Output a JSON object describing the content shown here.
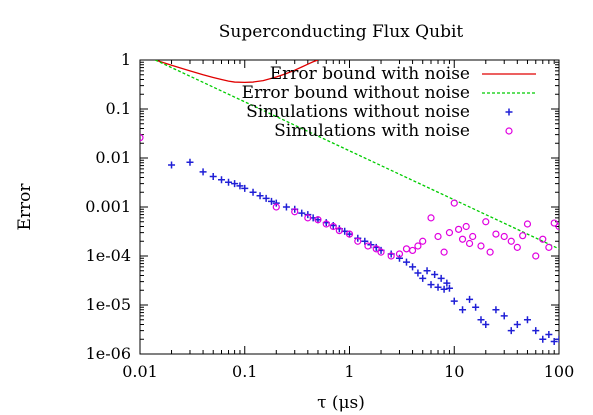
{
  "chart_data": {
    "type": "scatter",
    "title": "Superconducting Flux Qubit",
    "xlabel": "τ (μs)",
    "ylabel": "Error",
    "xscale": "log",
    "yscale": "log",
    "xlim": [
      0.01,
      100
    ],
    "ylim": [
      1e-06,
      1
    ],
    "grid": false,
    "legend_position": "top-right",
    "x_ticks": [
      {
        "value": 0.01,
        "label": "0.01"
      },
      {
        "value": 0.1,
        "label": "0.1"
      },
      {
        "value": 1,
        "label": "1"
      },
      {
        "value": 10,
        "label": "10"
      },
      {
        "value": 100,
        "label": "100"
      }
    ],
    "y_ticks": [
      {
        "value": 1,
        "label": "1"
      },
      {
        "value": 0.1,
        "label": "0.1"
      },
      {
        "value": 0.01,
        "label": "0.01"
      },
      {
        "value": 0.001,
        "label": "0.001"
      },
      {
        "value": 0.0001,
        "label": "1e-04"
      },
      {
        "value": 1e-05,
        "label": "1e-05"
      },
      {
        "value": 1e-06,
        "label": "1e-06"
      }
    ],
    "series": [
      {
        "name": "Error bound with noise",
        "style": "line",
        "color": "#e00000",
        "points": [
          [
            0.014,
            1.0
          ],
          [
            0.02,
            0.78
          ],
          [
            0.03,
            0.6
          ],
          [
            0.04,
            0.5
          ],
          [
            0.05,
            0.44
          ],
          [
            0.06,
            0.4
          ],
          [
            0.07,
            0.37
          ],
          [
            0.08,
            0.355
          ],
          [
            0.1,
            0.35
          ],
          [
            0.12,
            0.355
          ],
          [
            0.15,
            0.38
          ],
          [
            0.2,
            0.45
          ],
          [
            0.25,
            0.53
          ],
          [
            0.3,
            0.62
          ],
          [
            0.35,
            0.72
          ],
          [
            0.4,
            0.82
          ],
          [
            0.45,
            0.92
          ],
          [
            0.5,
            1.0
          ]
        ]
      },
      {
        "name": "Error bound without noise",
        "style": "dashed",
        "color": "#00cc00",
        "points": [
          [
            0.014,
            1.0
          ],
          [
            0.1,
            0.14
          ],
          [
            1,
            0.014
          ],
          [
            10,
            0.0014
          ],
          [
            100,
            0.00014
          ]
        ]
      },
      {
        "name": "Simulations without noise",
        "style": "plus",
        "color": "#1f1fd6",
        "points": [
          [
            0.02,
            0.0072
          ],
          [
            0.03,
            0.0082
          ],
          [
            0.04,
            0.0052
          ],
          [
            0.05,
            0.0042
          ],
          [
            0.06,
            0.0036
          ],
          [
            0.07,
            0.0032
          ],
          [
            0.08,
            0.003
          ],
          [
            0.09,
            0.0027
          ],
          [
            0.1,
            0.0024
          ],
          [
            0.12,
            0.002
          ],
          [
            0.14,
            0.0017
          ],
          [
            0.16,
            0.0015
          ],
          [
            0.18,
            0.0013
          ],
          [
            0.2,
            0.0012
          ],
          [
            0.25,
            0.001
          ],
          [
            0.3,
            0.0009
          ],
          [
            0.35,
            0.00075
          ],
          [
            0.4,
            0.0007
          ],
          [
            0.45,
            0.0006
          ],
          [
            0.5,
            0.00055
          ],
          [
            0.6,
            0.00048
          ],
          [
            0.7,
            0.00042
          ],
          [
            0.8,
            0.00036
          ],
          [
            0.9,
            0.00032
          ],
          [
            1.0,
            0.00028
          ],
          [
            1.2,
            0.00023
          ],
          [
            1.4,
            0.0002
          ],
          [
            1.6,
            0.00017
          ],
          [
            1.8,
            0.00015
          ],
          [
            2.0,
            0.00013
          ],
          [
            2.5,
            0.00011
          ],
          [
            3.0,
            9e-05
          ],
          [
            3.5,
            7.5e-05
          ],
          [
            4.0,
            6e-05
          ],
          [
            4.5,
            4.5e-05
          ],
          [
            5.0,
            3.5e-05
          ],
          [
            6.0,
            2.6e-05
          ],
          [
            7.0,
            2.3e-05
          ],
          [
            8.0,
            2.1e-05
          ],
          [
            9.0,
            2.2e-05
          ],
          [
            5.5,
            5e-05
          ],
          [
            6.5,
            4.2e-05
          ],
          [
            7.5,
            3.5e-05
          ],
          [
            8.5,
            2.8e-05
          ],
          [
            10,
            1.2e-05
          ],
          [
            12,
            8e-06
          ],
          [
            14,
            1.3e-05
          ],
          [
            16,
            9e-06
          ],
          [
            18,
            5e-06
          ],
          [
            20,
            4e-06
          ],
          [
            25,
            8e-06
          ],
          [
            30,
            6e-06
          ],
          [
            35,
            3e-06
          ],
          [
            40,
            4e-06
          ],
          [
            50,
            5e-06
          ],
          [
            60,
            3e-06
          ],
          [
            70,
            2e-06
          ],
          [
            80,
            2.5e-06
          ],
          [
            90,
            1.8e-06
          ],
          [
            100,
            2e-06
          ]
        ]
      },
      {
        "name": "Simulations with noise",
        "style": "circle",
        "color": "#e000e0",
        "points": [
          [
            0.01,
            0.026
          ],
          [
            0.2,
            0.001
          ],
          [
            0.3,
            0.0008
          ],
          [
            0.4,
            0.0006
          ],
          [
            0.5,
            0.00055
          ],
          [
            0.6,
            0.00045
          ],
          [
            0.7,
            0.0004
          ],
          [
            0.8,
            0.00033
          ],
          [
            1.0,
            0.00028
          ],
          [
            1.2,
            0.0002
          ],
          [
            1.5,
            0.00016
          ],
          [
            1.8,
            0.00014
          ],
          [
            2.0,
            0.00012
          ],
          [
            2.5,
            0.0001
          ],
          [
            3.0,
            0.00011
          ],
          [
            3.5,
            0.00014
          ],
          [
            4.0,
            0.00013
          ],
          [
            4.5,
            0.00016
          ],
          [
            5.0,
            0.0002
          ],
          [
            6.0,
            0.0006
          ],
          [
            7.0,
            0.00025
          ],
          [
            8.0,
            0.00012
          ],
          [
            9.0,
            0.0003
          ],
          [
            10,
            0.0012
          ],
          [
            11,
            0.00035
          ],
          [
            12,
            0.00022
          ],
          [
            13,
            0.0004
          ],
          [
            14,
            0.00018
          ],
          [
            15,
            0.00025
          ],
          [
            18,
            0.00016
          ],
          [
            20,
            0.0005
          ],
          [
            22,
            0.00012
          ],
          [
            25,
            0.00028
          ],
          [
            30,
            0.00025
          ],
          [
            35,
            0.0002
          ],
          [
            40,
            0.00015
          ],
          [
            45,
            0.00026
          ],
          [
            50,
            0.00045
          ],
          [
            60,
            0.0001
          ],
          [
            70,
            0.00022
          ],
          [
            80,
            0.00015
          ],
          [
            90,
            0.00047
          ],
          [
            100,
            0.0004
          ]
        ]
      }
    ]
  }
}
